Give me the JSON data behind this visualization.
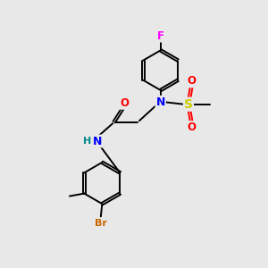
{
  "background_color": "#e8e8e8",
  "bond_color": "#000000",
  "atom_colors": {
    "F": "#ff00ff",
    "N": "#0000ff",
    "O": "#ff0000",
    "S": "#cccc00",
    "Br": "#cc6600",
    "C": "#000000",
    "H": "#008888"
  },
  "font_size": 8.5,
  "line_width": 1.4
}
